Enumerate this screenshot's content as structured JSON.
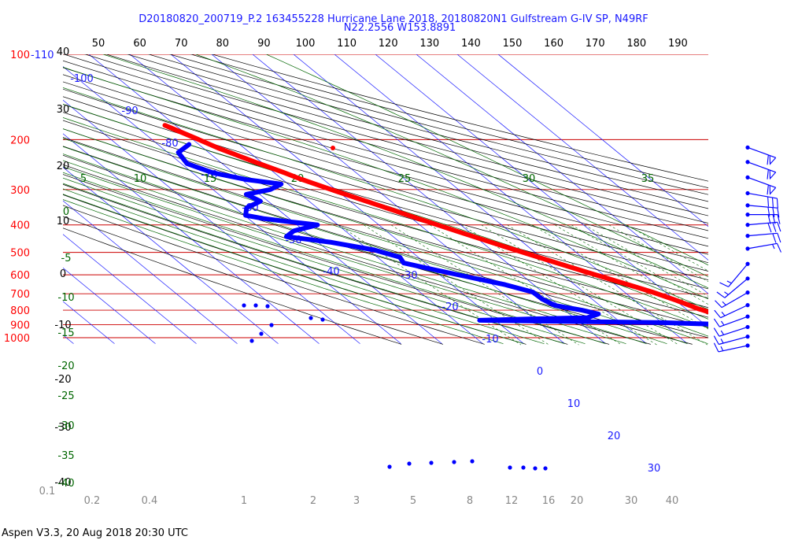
{
  "title_line1": "D20180820_200719_P.2 163455228 Hurricane Lane 2018, 20180820N1 Gulfstream G-IV SP, N49RF",
  "title_line2": "N22.2556 W153.8891",
  "footer": "Aspen V3.3, 20 Aug 2018  20:30 UTC",
  "colors": {
    "temperature": "#ff0000",
    "dewpoint": "#0000ff",
    "isobar": "#cc0000",
    "isotherm": "#1a1aff",
    "dry_adiabat": "#000000",
    "moist_adiabat": "#006600",
    "mixing_ratio": "#006600",
    "wind_barb": "#0000ff"
  },
  "chart_data": {
    "type": "skew-t log-p sounding",
    "pressure_labels": [
      "100",
      "200",
      "300",
      "400",
      "500",
      "600",
      "700",
      "800",
      "900",
      "1000"
    ],
    "pressure_levels": [
      100,
      200,
      300,
      400,
      500,
      600,
      700,
      800,
      900,
      1000
    ],
    "top_theta_labels": [
      "50",
      "60",
      "70",
      "80",
      "90",
      "100",
      "110",
      "120",
      "130",
      "140",
      "150",
      "160",
      "170",
      "180",
      "190"
    ],
    "corner_label": "-110",
    "left_temp_labels": [
      "40",
      "30",
      "20",
      "10",
      "0",
      "-10",
      "-20",
      "-30",
      "-40"
    ],
    "left_temp_values": [
      40,
      30,
      20,
      10,
      0,
      -10,
      -20,
      -30,
      -40
    ],
    "isotherm_labels": [
      "-100",
      "-90",
      "-80",
      "-70",
      "-60",
      "-50",
      "-40",
      "-30",
      "-20",
      "-10",
      "0",
      "10",
      "20",
      "30"
    ],
    "isotherm_values": [
      -100,
      -90,
      -80,
      -70,
      -60,
      -50,
      -40,
      -30,
      -20,
      -10,
      0,
      10,
      20,
      30
    ],
    "moist_labels_top": [
      "5",
      "10",
      "15",
      "20",
      "25",
      "30",
      "35"
    ],
    "moist_labels_left": [
      "0",
      "-5",
      "-10",
      "-15",
      "-20",
      "-25",
      "-30",
      "-35",
      "-40"
    ],
    "mixing_ratio_labels": [
      "0.1",
      "0.2",
      "0.4",
      "1",
      "2",
      "3",
      "5",
      "8",
      "12",
      "16",
      "20",
      "30",
      "40"
    ],
    "temperature_profile": [
      {
        "p": 178,
        "t": -62.6
      },
      {
        "p": 198,
        "t": -58.9
      },
      {
        "p": 214,
        "t": -56.4
      },
      {
        "p": 240,
        "t": -51.5
      },
      {
        "p": 262,
        "t": -47.5
      },
      {
        "p": 275,
        "t": -45.5
      },
      {
        "p": 305,
        "t": -40.3
      },
      {
        "p": 340,
        "t": -34.4
      },
      {
        "p": 380,
        "t": -28.5
      },
      {
        "p": 425,
        "t": -22.3
      },
      {
        "p": 475,
        "t": -16.0
      },
      {
        "p": 530,
        "t": -9.5
      },
      {
        "p": 590,
        "t": -3.0
      },
      {
        "p": 640,
        "t": 2.2
      },
      {
        "p": 690,
        "t": 6.8
      },
      {
        "p": 740,
        "t": 10.3
      },
      {
        "p": 790,
        "t": 13.0
      },
      {
        "p": 830,
        "t": 16.0
      },
      {
        "p": 855,
        "t": 17.0
      },
      {
        "p": 870,
        "t": 15.5
      },
      {
        "p": 900,
        "t": 16.2
      },
      {
        "p": 950,
        "t": 19.7
      },
      {
        "p": 1000,
        "t": 23.0
      },
      {
        "p": 1010,
        "t": 24.2
      }
    ],
    "dewpoint_profile": [
      {
        "p": 208,
        "td": -62.4
      },
      {
        "p": 222,
        "td": -67.4
      },
      {
        "p": 243,
        "td": -68.6
      },
      {
        "p": 262,
        "td": -65.0
      },
      {
        "p": 277,
        "td": -58.7
      },
      {
        "p": 287,
        "td": -51.7
      },
      {
        "p": 300,
        "td": -56.0
      },
      {
        "p": 312,
        "td": -63.3
      },
      {
        "p": 330,
        "td": -61.9
      },
      {
        "p": 348,
        "td": -67.2
      },
      {
        "p": 370,
        "td": -69.7
      },
      {
        "p": 380,
        "td": -66.3
      },
      {
        "p": 390,
        "td": -60.8
      },
      {
        "p": 400,
        "td": -55.0
      },
      {
        "p": 420,
        "td": -62.6
      },
      {
        "p": 440,
        "td": -66.1
      },
      {
        "p": 460,
        "td": -57.1
      },
      {
        "p": 490,
        "td": -48.6
      },
      {
        "p": 520,
        "td": -44.5
      },
      {
        "p": 545,
        "td": -45.3
      },
      {
        "p": 575,
        "td": -39.9
      },
      {
        "p": 615,
        "td": -32.9
      },
      {
        "p": 650,
        "td": -27.0
      },
      {
        "p": 690,
        "td": -22.4
      },
      {
        "p": 730,
        "td": -22.2
      },
      {
        "p": 770,
        "td": -21.0
      },
      {
        "p": 800,
        "td": -15.8
      },
      {
        "p": 825,
        "td": -12.9
      },
      {
        "p": 850,
        "td": -16.7
      },
      {
        "p": 858,
        "td": -30.4
      },
      {
        "p": 868,
        "td": -43.8
      },
      {
        "p": 885,
        "td": 0.4
      },
      {
        "p": 895,
        "td": 11.5
      },
      {
        "p": 910,
        "td": 11.3
      },
      {
        "p": 950,
        "td": 12.4
      },
      {
        "p": 990,
        "td": 15.9
      },
      {
        "p": 1010,
        "td": 20.0
      }
    ],
    "wind_barbs": [
      {
        "p": 200,
        "speed_kt": 60,
        "dir_deg": 290
      },
      {
        "p": 225,
        "speed_kt": 60,
        "dir_deg": 290
      },
      {
        "p": 255,
        "speed_kt": 60,
        "dir_deg": 290
      },
      {
        "p": 290,
        "speed_kt": 30,
        "dir_deg": 280
      },
      {
        "p": 320,
        "speed_kt": 30,
        "dir_deg": 275
      },
      {
        "p": 345,
        "speed_kt": 30,
        "dir_deg": 270
      },
      {
        "p": 375,
        "speed_kt": 30,
        "dir_deg": 265
      },
      {
        "p": 410,
        "speed_kt": 20,
        "dir_deg": 265
      },
      {
        "p": 455,
        "speed_kt": 15,
        "dir_deg": 260
      },
      {
        "p": 515,
        "speed_kt": 15,
        "dir_deg": 40
      },
      {
        "p": 580,
        "speed_kt": 15,
        "dir_deg": 50
      },
      {
        "p": 650,
        "speed_kt": 15,
        "dir_deg": 60
      },
      {
        "p": 720,
        "speed_kt": 15,
        "dir_deg": 65
      },
      {
        "p": 790,
        "speed_kt": 15,
        "dir_deg": 70
      },
      {
        "p": 860,
        "speed_kt": 15,
        "dir_deg": 72
      },
      {
        "p": 930,
        "speed_kt": 15,
        "dir_deg": 75
      },
      {
        "p": 1000,
        "speed_kt": 15,
        "dir_deg": 78
      }
    ]
  }
}
